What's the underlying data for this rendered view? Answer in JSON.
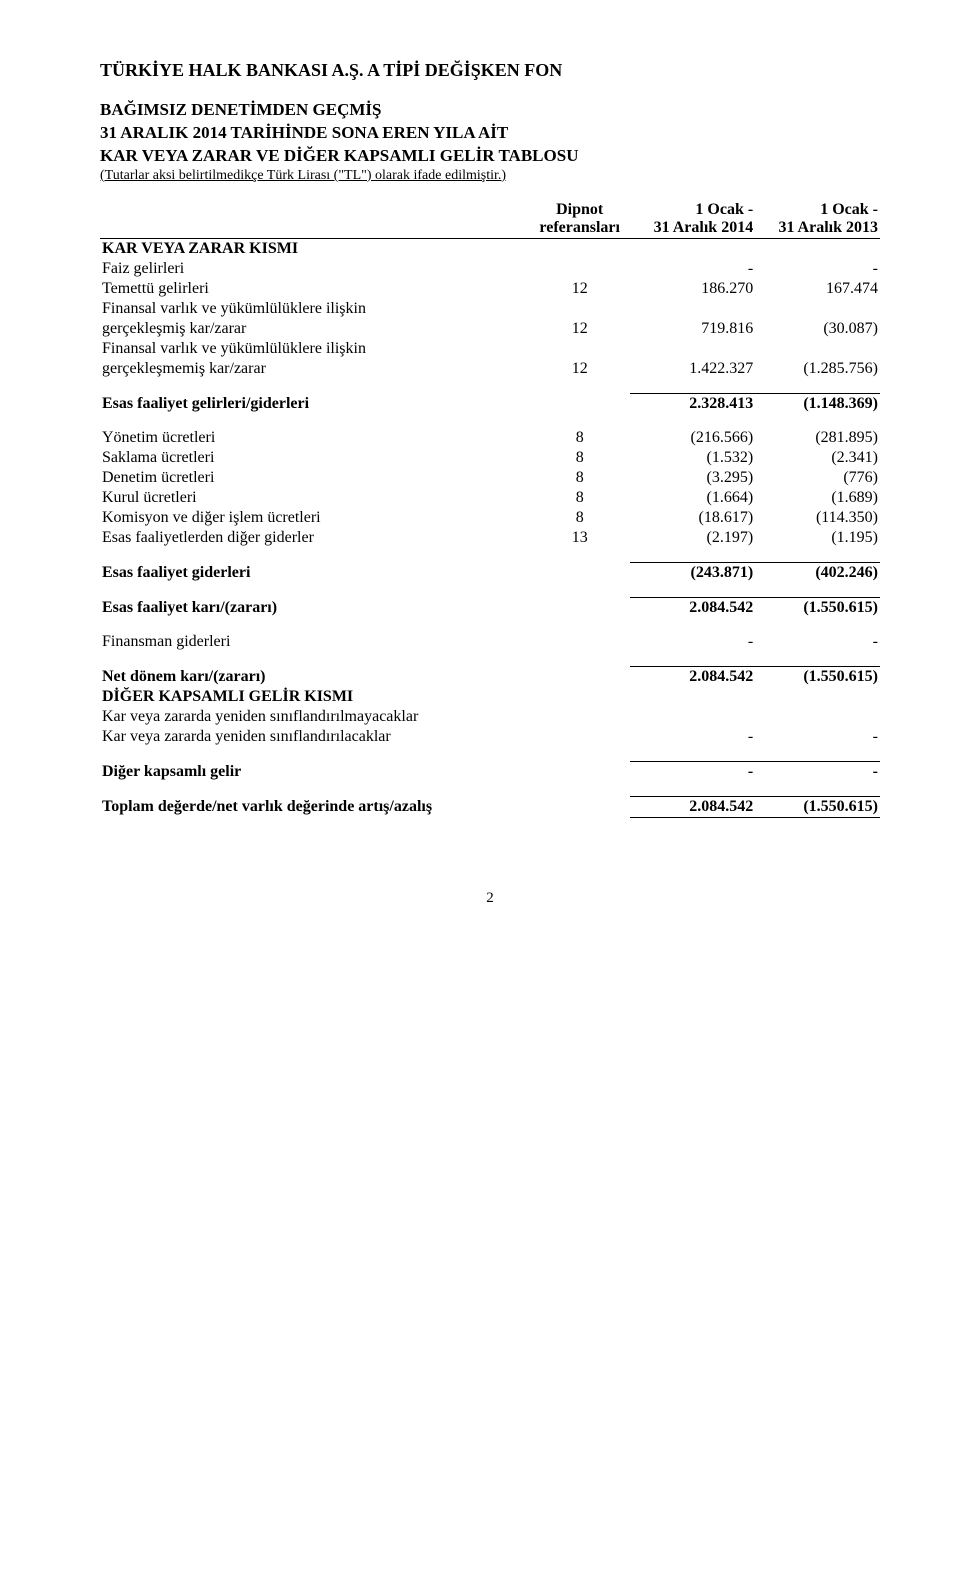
{
  "company_name": "TÜRKİYE HALK BANKASI A.Ş. A TİPİ DEĞİŞKEN FON",
  "title_line1": "BAĞIMSIZ DENETİMDEN GEÇMİŞ",
  "title_line2": "31 ARALIK 2014 TARİHİNDE SONA EREN YILA AİT",
  "title_line3": "KAR VEYA ZARAR VE DİĞER KAPSAMLI GELİR TABLOSU",
  "subtitle_note": "(Tutarlar aksi belirtilmedikçe Türk Lirası (\"TL\") olarak ifade edilmiştir.)",
  "col_headers": {
    "ref_line1": "Dipnot",
    "ref_line2": "referansları",
    "p1_line1": "1 Ocak -",
    "p1_line2": "31 Aralık 2014",
    "p2_line1": "1 Ocak -",
    "p2_line2": "31 Aralık 2013"
  },
  "section_pl": "KAR VEYA ZARAR KISMI",
  "rows": {
    "faiz": {
      "label": "Faiz gelirleri",
      "ref": "",
      "v1": "-",
      "v2": "-"
    },
    "temettu": {
      "label": "Temettü gelirleri",
      "ref": "12",
      "v1": "186.270",
      "v2": "167.474"
    },
    "fv_iliskin_l1": "Finansal varlık ve yükümlülüklere ilişkin",
    "fv_gerceklesmis": {
      "label": "gerçekleşmiş kar/zarar",
      "ref": "12",
      "v1": "719.816",
      "v2": "(30.087)"
    },
    "fv_gerceklesmemis": {
      "label": "gerçekleşmemiş kar/zarar",
      "ref": "12",
      "v1": "1.422.327",
      "v2": "(1.285.756)"
    },
    "esas_gelir": {
      "label": "Esas faaliyet gelirleri/giderleri",
      "ref": "",
      "v1": "2.328.413",
      "v2": "(1.148.369)"
    },
    "yonetim": {
      "label": "Yönetim ücretleri",
      "ref": "8",
      "v1": "(216.566)",
      "v2": "(281.895)"
    },
    "saklama": {
      "label": "Saklama ücretleri",
      "ref": "8",
      "v1": "(1.532)",
      "v2": "(2.341)"
    },
    "denetim": {
      "label": "Denetim ücretleri",
      "ref": "8",
      "v1": "(3.295)",
      "v2": "(776)"
    },
    "kurul": {
      "label": "Kurul ücretleri",
      "ref": "8",
      "v1": "(1.664)",
      "v2": "(1.689)"
    },
    "komisyon": {
      "label": "Komisyon ve diğer işlem ücretleri",
      "ref": "8",
      "v1": "(18.617)",
      "v2": "(114.350)"
    },
    "diger_gider": {
      "label": "Esas faaliyetlerden diğer giderler",
      "ref": "13",
      "v1": "(2.197)",
      "v2": "(1.195)"
    },
    "esas_giderler": {
      "label": "Esas faaliyet giderleri",
      "ref": "",
      "v1": "(243.871)",
      "v2": "(402.246)"
    },
    "esas_kar": {
      "label": "Esas faaliyet karı/(zararı)",
      "ref": "",
      "v1": "2.084.542",
      "v2": "(1.550.615)"
    },
    "finansman": {
      "label": "Finansman giderleri",
      "ref": "",
      "v1": "-",
      "v2": "-"
    },
    "net_donem": {
      "label": "Net dönem karı/(zararı)",
      "ref": "",
      "v1": "2.084.542",
      "v2": "(1.550.615)"
    }
  },
  "section_oci": "DİĞER KAPSAMLI GELİR KISMI",
  "oci": {
    "not_reclass": "Kar veya zararda yeniden sınıflandırılmayacaklar",
    "reclass": {
      "label": "Kar veya zararda yeniden sınıflandırılacaklar",
      "v1": "-",
      "v2": "-"
    },
    "diger_kapsamli": {
      "label": "Diğer kapsamlı gelir",
      "v1": "-",
      "v2": "-"
    },
    "toplam": {
      "label": "Toplam değerde/net varlık değerinde artış/azalış",
      "v1": "2.084.542",
      "v2": "(1.550.615)"
    }
  },
  "page_number": "2"
}
